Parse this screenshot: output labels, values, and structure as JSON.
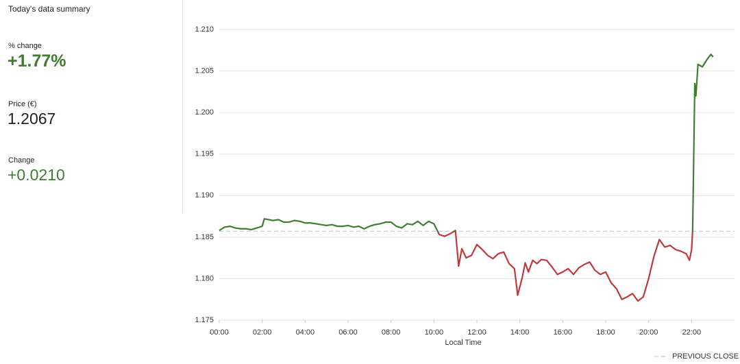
{
  "summary": {
    "title": "Today's data summary",
    "stats": [
      {
        "label": "% change",
        "value": "+1.77%"
      },
      {
        "label": "Price (€)",
        "value": "1.2067"
      },
      {
        "label": "Change",
        "value": "+0.0210"
      }
    ]
  },
  "chart_data": {
    "type": "line",
    "x_label": "Local Time",
    "x": [
      0,
      0.25,
      0.5,
      0.75,
      1,
      1.25,
      1.5,
      1.75,
      2,
      2.1,
      2.5,
      2.75,
      3,
      3.25,
      3.5,
      3.75,
      4,
      4.25,
      4.5,
      4.75,
      5,
      5.25,
      5.5,
      5.75,
      6,
      6.25,
      6.5,
      6.75,
      7,
      7.25,
      7.5,
      7.75,
      8,
      8.25,
      8.5,
      8.75,
      9,
      9.25,
      9.5,
      9.75,
      10,
      10.25,
      10.5,
      10.75,
      11,
      11.15,
      11.3,
      11.5,
      11.75,
      12,
      12.25,
      12.5,
      12.75,
      13,
      13.25,
      13.5,
      13.75,
      13.9,
      14.1,
      14.25,
      14.4,
      14.6,
      14.8,
      15,
      15.25,
      15.5,
      15.75,
      16,
      16.25,
      16.5,
      16.75,
      17,
      17.25,
      17.5,
      17.75,
      18,
      18.25,
      18.5,
      18.75,
      19,
      19.25,
      19.5,
      19.75,
      20,
      20.25,
      20.5,
      20.75,
      21,
      21.25,
      21.5,
      21.75,
      21.9,
      22,
      22.05,
      22.15,
      22.2,
      22.3,
      22.5,
      22.75,
      22.9,
      23
    ],
    "series": [
      {
        "color": "#3f7d33",
        "color_below": "#c0383a",
        "values": [
          1.1858,
          1.1862,
          1.1863,
          1.1861,
          1.186,
          1.186,
          1.1859,
          1.1861,
          1.1863,
          1.1872,
          1.187,
          1.1871,
          1.1868,
          1.1868,
          1.187,
          1.1869,
          1.1867,
          1.1867,
          1.1866,
          1.1865,
          1.1864,
          1.1865,
          1.1863,
          1.1863,
          1.1864,
          1.1862,
          1.1863,
          1.186,
          1.1863,
          1.1865,
          1.1866,
          1.1868,
          1.1868,
          1.1863,
          1.1861,
          1.1866,
          1.1865,
          1.1869,
          1.1864,
          1.1869,
          1.1866,
          1.1853,
          1.1851,
          1.1854,
          1.1858,
          1.1815,
          1.1836,
          1.1825,
          1.1828,
          1.1841,
          1.1835,
          1.1828,
          1.1824,
          1.183,
          1.1832,
          1.1818,
          1.1812,
          1.178,
          1.18,
          1.1819,
          1.1808,
          1.1822,
          1.1818,
          1.1823,
          1.1822,
          1.1814,
          1.1805,
          1.1808,
          1.1812,
          1.1805,
          1.1813,
          1.1817,
          1.182,
          1.181,
          1.1805,
          1.1808,
          1.1795,
          1.1788,
          1.1775,
          1.1778,
          1.1782,
          1.1773,
          1.1778,
          1.18,
          1.1827,
          1.1847,
          1.1838,
          1.184,
          1.1835,
          1.1833,
          1.183,
          1.1822,
          1.1835,
          1.1858,
          1.2035,
          1.202,
          1.2058,
          1.2055,
          1.2065,
          1.207,
          1.2067
        ]
      }
    ],
    "reference_line": {
      "label": "PREVIOUS CLOSE",
      "value": 1.1857,
      "color": "#c9d2d9"
    },
    "xlim": [
      0,
      24
    ],
    "xticks": [
      {
        "value": 0,
        "label": "00:00"
      },
      {
        "value": 2,
        "label": "02:00"
      },
      {
        "value": 4,
        "label": "04:00"
      },
      {
        "value": 6,
        "label": "06:00"
      },
      {
        "value": 8,
        "label": "08:00"
      },
      {
        "value": 10,
        "label": "10:00"
      },
      {
        "value": 12,
        "label": "12:00"
      },
      {
        "value": 14,
        "label": "14:00"
      },
      {
        "value": 16,
        "label": "16:00"
      },
      {
        "value": 18,
        "label": "18:00"
      },
      {
        "value": 20,
        "label": "20:00"
      },
      {
        "value": 22,
        "label": "22:00"
      }
    ],
    "ylim": [
      1.175,
      1.21
    ],
    "yticks": [
      {
        "value": 1.175,
        "label": "1.175"
      },
      {
        "value": 1.18,
        "label": "1.180"
      },
      {
        "value": 1.185,
        "label": "1.185"
      },
      {
        "value": 1.19,
        "label": "1.190"
      },
      {
        "value": 1.195,
        "label": "1.195"
      },
      {
        "value": 1.2,
        "label": "1.200"
      },
      {
        "value": 1.205,
        "label": "1.205"
      },
      {
        "value": 1.21,
        "label": "1.210"
      }
    ],
    "grid": true
  }
}
